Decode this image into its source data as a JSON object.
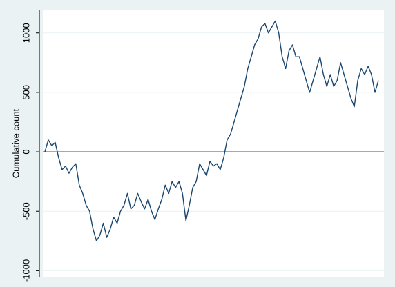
{
  "chart_data": {
    "type": "line",
    "y_label": "Cumulative count",
    "values": [
      0,
      100,
      50,
      80,
      -50,
      -150,
      -120,
      -180,
      -130,
      -100,
      -280,
      -350,
      -450,
      -500,
      -650,
      -750,
      -700,
      -600,
      -720,
      -650,
      -550,
      -600,
      -500,
      -450,
      -350,
      -480,
      -450,
      -350,
      -420,
      -480,
      -400,
      -500,
      -570,
      -480,
      -400,
      -280,
      -350,
      -250,
      -300,
      -250,
      -350,
      -580,
      -450,
      -300,
      -250,
      -100,
      -150,
      -200,
      -80,
      -120,
      -100,
      -150,
      -50,
      100,
      150,
      250,
      350,
      450,
      550,
      700,
      800,
      900,
      950,
      1050,
      1080,
      1000,
      1050,
      1100,
      1000,
      800,
      700,
      850,
      900,
      800,
      800,
      700,
      600,
      500,
      600,
      700,
      800,
      650,
      550,
      650,
      550,
      600,
      750,
      650,
      550,
      450,
      380,
      600,
      700,
      650,
      720,
      650,
      500,
      600
    ],
    "color": "#1a476f",
    "ylim": [
      -1050,
      1190
    ],
    "yticks": [
      -1000,
      -500,
      0,
      500,
      1000
    ],
    "grid": true,
    "hline": {
      "value": 0,
      "color": "#90353b"
    }
  }
}
